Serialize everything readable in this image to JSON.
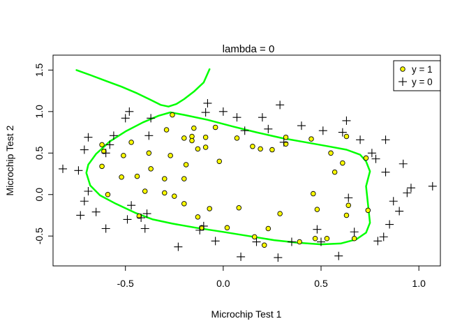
{
  "chart_data": {
    "type": "scatter",
    "title": "lambda =  0",
    "xlabel": "Microchip Test 1",
    "ylabel": "Microchip Test 2",
    "xlim": [
      -0.87,
      1.11
    ],
    "ylim": [
      -0.86,
      1.68
    ],
    "x_ticks": [
      -0.5,
      0.0,
      0.5,
      1.0
    ],
    "x_tick_labels": [
      "-0.5",
      "0.0",
      "0.5",
      "1.0"
    ],
    "y_ticks": [
      -0.5,
      0.0,
      0.5,
      1.0,
      1.5
    ],
    "y_tick_labels": [
      "-0.5",
      "0.0",
      "0.5",
      "1.0",
      "1.5"
    ],
    "grid": false,
    "legend": {
      "position": "top-right",
      "entries": [
        {
          "label": "y = 1",
          "marker": "circle",
          "fill": "#FFFF00"
        },
        {
          "label": "y = 0",
          "marker": "plus"
        }
      ]
    },
    "series": [
      {
        "name": "y = 1",
        "marker": "circle",
        "color": "#FFFF00",
        "points": [
          [
            -0.26,
            0.96
          ],
          [
            -0.29,
            0.78
          ],
          [
            -0.27,
            0.47
          ],
          [
            -0.3,
            0.19
          ],
          [
            -0.3,
            0.02
          ],
          [
            -0.25,
            -0.02
          ],
          [
            -0.2,
            0.68
          ],
          [
            -0.19,
            0.36
          ],
          [
            -0.2,
            0.19
          ],
          [
            -0.2,
            -0.11
          ],
          [
            -0.16,
            0.7
          ],
          [
            -0.16,
            0.65
          ],
          [
            -0.15,
            0.8
          ],
          [
            -0.13,
            0.55
          ],
          [
            -0.13,
            -0.27
          ],
          [
            -0.11,
            -0.4
          ],
          [
            -0.09,
            0.69
          ],
          [
            -0.09,
            0.57
          ],
          [
            -0.07,
            -0.17
          ],
          [
            -0.04,
            0.81
          ],
          [
            -0.02,
            0.4
          ],
          [
            0.02,
            -0.4
          ],
          [
            0.07,
            0.68
          ],
          [
            0.08,
            -0.16
          ],
          [
            0.15,
            0.58
          ],
          [
            0.16,
            -0.51
          ],
          [
            0.19,
            0.55
          ],
          [
            0.21,
            -0.61
          ],
          [
            0.23,
            -0.41
          ],
          [
            0.25,
            0.54
          ],
          [
            0.29,
            -0.23
          ],
          [
            0.32,
            0.69
          ],
          [
            0.32,
            0.61
          ],
          [
            0.39,
            -0.57
          ],
          [
            0.45,
            0.67
          ],
          [
            0.46,
            0.01
          ],
          [
            0.47,
            -0.53
          ],
          [
            0.48,
            -0.18
          ],
          [
            0.53,
            -0.53
          ],
          [
            0.55,
            0.5
          ],
          [
            0.57,
            0.27
          ],
          [
            0.61,
            0.38
          ],
          [
            0.63,
            0.7
          ],
          [
            0.63,
            -0.25
          ],
          [
            0.64,
            -0.13
          ],
          [
            0.67,
            -0.53
          ],
          [
            0.73,
            0.44
          ],
          [
            0.74,
            -0.19
          ],
          [
            -0.62,
            0.6
          ],
          [
            -0.61,
            0.52
          ],
          [
            -0.62,
            0.34
          ],
          [
            -0.59,
            0.0
          ],
          [
            -0.51,
            0.47
          ],
          [
            -0.52,
            0.21
          ],
          [
            -0.47,
            0.63
          ],
          [
            -0.44,
            0.22
          ],
          [
            -0.38,
            0.5
          ],
          [
            -0.37,
            0.31
          ],
          [
            -0.4,
            0.04
          ],
          [
            -0.43,
            -0.26
          ]
        ]
      },
      {
        "name": "y = 0",
        "marker": "plus",
        "color": "#000000",
        "points": [
          [
            -0.82,
            0.31
          ],
          [
            -0.74,
            0.29
          ],
          [
            -0.73,
            -0.25
          ],
          [
            -0.71,
            -0.08
          ],
          [
            -0.69,
            0.04
          ],
          [
            -0.71,
            0.54
          ],
          [
            -0.69,
            0.69
          ],
          [
            -0.65,
            -0.21
          ],
          [
            -0.6,
            0.5
          ],
          [
            -0.58,
            0.6
          ],
          [
            -0.56,
            0.71
          ],
          [
            -0.6,
            -0.41
          ],
          [
            -0.5,
            0.92
          ],
          [
            -0.48,
            1.0
          ],
          [
            -0.47,
            -0.13
          ],
          [
            -0.49,
            -0.3
          ],
          [
            -0.42,
            -0.28
          ],
          [
            -0.4,
            -0.41
          ],
          [
            -0.37,
            0.92
          ],
          [
            -0.38,
            0.71
          ],
          [
            -0.39,
            -0.23
          ],
          [
            -0.23,
            -0.63
          ],
          [
            -0.12,
            -0.43
          ],
          [
            -0.1,
            -0.38
          ],
          [
            -0.09,
            0.99
          ],
          [
            -0.08,
            1.1
          ],
          [
            -0.04,
            -0.56
          ],
          [
            0.0,
            1.0
          ],
          [
            0.07,
            0.93
          ],
          [
            0.09,
            -0.75
          ],
          [
            0.11,
            0.77
          ],
          [
            0.17,
            -0.57
          ],
          [
            0.2,
            0.93
          ],
          [
            0.23,
            0.79
          ],
          [
            0.28,
            -0.76
          ],
          [
            0.29,
            1.08
          ],
          [
            0.31,
            0.63
          ],
          [
            0.35,
            -0.57
          ],
          [
            0.4,
            0.83
          ],
          [
            0.48,
            -0.42
          ],
          [
            0.5,
            -0.57
          ],
          [
            0.51,
            0.77
          ],
          [
            0.59,
            -0.74
          ],
          [
            0.61,
            0.75
          ],
          [
            0.63,
            0.89
          ],
          [
            0.64,
            -0.04
          ],
          [
            0.67,
            -0.45
          ],
          [
            0.7,
            0.66
          ],
          [
            0.76,
            0.5
          ],
          [
            0.78,
            0.43
          ],
          [
            0.79,
            -0.56
          ],
          [
            0.82,
            -0.51
          ],
          [
            0.83,
            0.66
          ],
          [
            0.83,
            0.27
          ],
          [
            0.85,
            -0.36
          ],
          [
            0.87,
            -0.08
          ],
          [
            0.9,
            -0.2
          ],
          [
            0.92,
            0.37
          ],
          [
            0.94,
            0.02
          ],
          [
            0.96,
            0.08
          ],
          [
            1.07,
            0.1
          ]
        ]
      }
    ],
    "decision_boundary": {
      "color": "#00FF00",
      "segments": [
        [
          [
            -0.75,
            1.5
          ],
          [
            -0.68,
            1.44
          ],
          [
            -0.6,
            1.37
          ],
          [
            -0.52,
            1.3
          ],
          [
            -0.44,
            1.22
          ],
          [
            -0.37,
            1.14
          ],
          [
            -0.32,
            1.08
          ],
          [
            -0.28,
            1.06
          ],
          [
            -0.24,
            1.09
          ],
          [
            -0.2,
            1.15
          ],
          [
            -0.15,
            1.24
          ],
          [
            -0.1,
            1.35
          ],
          [
            -0.07,
            1.51
          ]
        ],
        [
          [
            -0.27,
            0.99
          ],
          [
            -0.33,
            0.95
          ],
          [
            -0.41,
            0.87
          ],
          [
            -0.5,
            0.76
          ],
          [
            -0.58,
            0.64
          ],
          [
            -0.65,
            0.49
          ],
          [
            -0.69,
            0.36
          ],
          [
            -0.7,
            0.26
          ],
          [
            -0.68,
            0.11
          ],
          [
            -0.63,
            -0.01
          ],
          [
            -0.55,
            -0.11
          ],
          [
            -0.45,
            -0.22
          ],
          [
            -0.36,
            -0.3
          ],
          [
            -0.26,
            -0.35
          ],
          [
            -0.14,
            -0.4
          ],
          [
            0.0,
            -0.45
          ],
          [
            0.13,
            -0.5
          ],
          [
            0.26,
            -0.55
          ],
          [
            0.38,
            -0.58
          ],
          [
            0.5,
            -0.6
          ],
          [
            0.6,
            -0.59
          ],
          [
            0.68,
            -0.54
          ],
          [
            0.73,
            -0.46
          ],
          [
            0.75,
            -0.34
          ],
          [
            0.74,
            -0.12
          ],
          [
            0.73,
            0.1
          ],
          [
            0.75,
            0.28
          ],
          [
            0.73,
            0.4
          ],
          [
            0.7,
            0.48
          ],
          [
            0.63,
            0.54
          ],
          [
            0.54,
            0.58
          ],
          [
            0.42,
            0.63
          ],
          [
            0.3,
            0.68
          ],
          [
            0.17,
            0.75
          ],
          [
            0.05,
            0.82
          ],
          [
            -0.08,
            0.9
          ],
          [
            -0.2,
            0.96
          ],
          [
            -0.27,
            0.99
          ]
        ]
      ]
    }
  }
}
